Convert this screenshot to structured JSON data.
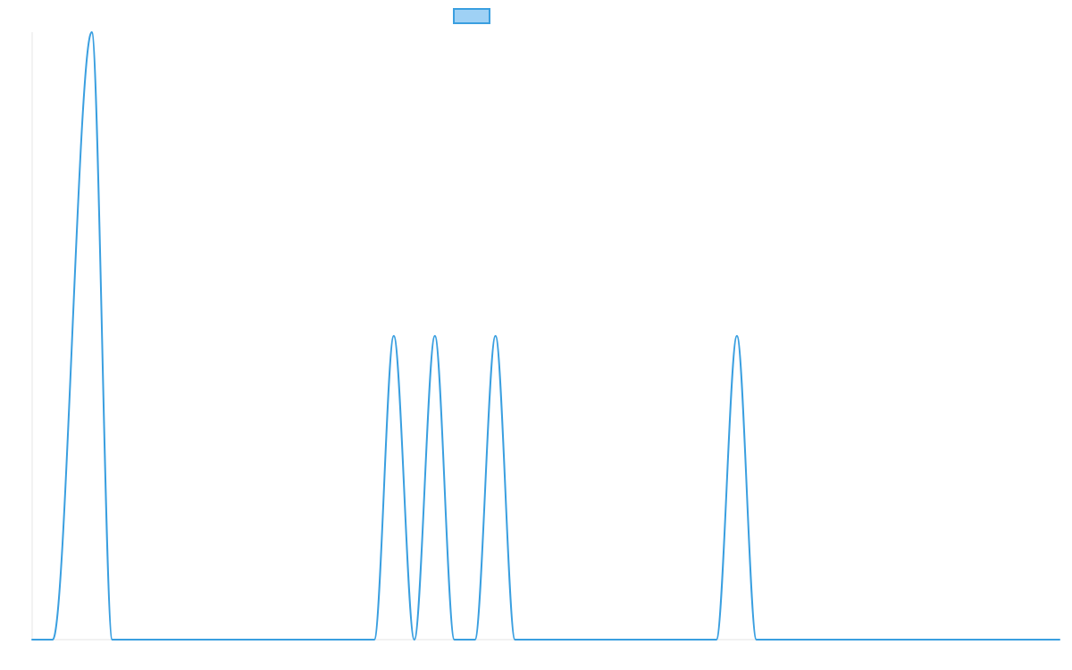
{
  "chart_data": {
    "type": "line",
    "title": "",
    "xlabel": "",
    "ylabel": "",
    "legend": {
      "placement": "top-center",
      "entries": [
        {
          "name": "",
          "color": "#3a9fe0",
          "fill": "#9fd1f5"
        }
      ]
    },
    "xlim": [
      0,
      1000
    ],
    "ylim": [
      0,
      2
    ],
    "grid": false,
    "series": [
      {
        "name": "",
        "color": "#3a9fe0",
        "x": [
          0,
          20,
          58,
          78,
          333,
          352,
          372,
          392,
          411,
          431,
          451,
          470,
          490,
          666,
          686,
          705,
          1000
        ],
        "y": [
          0,
          0,
          2,
          0,
          0,
          1,
          0,
          1,
          0,
          0,
          1,
          0,
          0,
          0,
          1,
          0,
          0
        ]
      }
    ]
  }
}
